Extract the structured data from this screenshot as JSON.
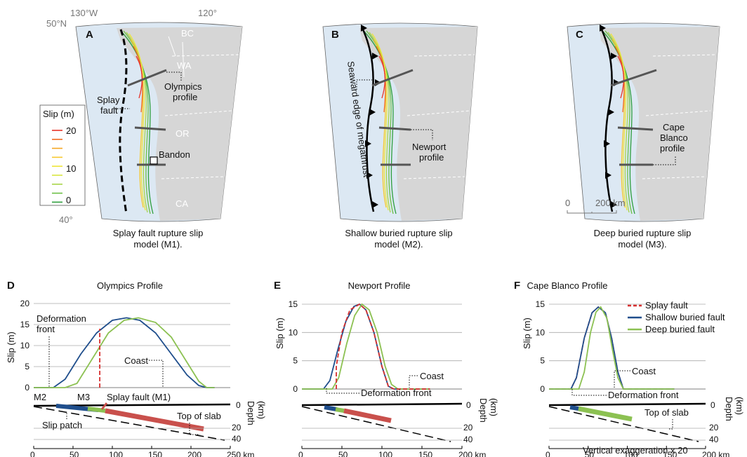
{
  "panels": {
    "A": {
      "letter": "A",
      "caption_l1": "Splay fault rupture slip",
      "caption_l2": "model (M1).",
      "lon_w": "130°W",
      "lon_e": "120°",
      "lat_n": "50°N",
      "lat_s": "40°",
      "regions": {
        "bc": "BC",
        "wa": "WA",
        "or": "OR",
        "ca": "CA"
      },
      "splay_l1": "Splay",
      "splay_l2": "fault",
      "olym_l1": "Olympics",
      "olym_l2": "profile",
      "bandon": "Bandon"
    },
    "B": {
      "letter": "B",
      "caption_l1": "Shallow buried rupture slip",
      "caption_l2": "model (M2).",
      "seaward": "Seaward edge of megathrust",
      "newport_l1": "Newport",
      "newport_l2": "profile"
    },
    "C": {
      "letter": "C",
      "caption_l1": "Deep buried rupture slip",
      "caption_l2": "model (M3).",
      "cape_l1": "Cape",
      "cape_l2": "Blanco",
      "cape_l3": "profile",
      "scale_0": "0",
      "scale_200": "200 km"
    }
  },
  "legend": {
    "title": "Slip (m)",
    "ticks": [
      "20",
      "10",
      "0"
    ],
    "colors": [
      "#e8322a",
      "#f06b22",
      "#f5a623",
      "#f7c82e",
      "#eee53a",
      "#d8e640",
      "#a8d448",
      "#6bbf45",
      "#2e9e3e"
    ]
  },
  "chart_data": [
    {
      "type": "line",
      "title": "Olympics Profile",
      "panel": "D",
      "xlabel": "km",
      "ylabel": "Slip (m)",
      "xlim": [
        0,
        250
      ],
      "ylim": [
        0,
        20
      ],
      "xticks": [
        "0",
        "50",
        "100",
        "150",
        "200",
        "250 km"
      ],
      "yticks": [
        "0",
        "5",
        "10",
        "15",
        "20"
      ],
      "series": [
        {
          "model": "shallow",
          "color": "#1f4e8c",
          "x": [
            0,
            25,
            40,
            60,
            80,
            100,
            118,
            135,
            155,
            175,
            195,
            210,
            220,
            230
          ],
          "y": [
            0,
            0,
            2,
            8,
            13,
            16,
            16.6,
            16,
            13,
            8,
            3,
            0.5,
            0,
            0
          ]
        },
        {
          "model": "deep",
          "color": "#8cc152",
          "x": [
            0,
            25,
            40,
            55,
            75,
            95,
            115,
            133,
            155,
            175,
            195,
            210,
            220,
            230
          ],
          "y": [
            0,
            0,
            0,
            1,
            7,
            13,
            16,
            16.6,
            15.5,
            12,
            6,
            1.5,
            0,
            0
          ]
        },
        {
          "model": "splay",
          "color": "#d62f2f",
          "x": [
            84,
            84
          ],
          "y": [
            0,
            14
          ]
        }
      ],
      "annotations": {
        "deform_l1": "Deformation",
        "deform_l2": "front",
        "coast": "Coast",
        "splay_m1": "Splay fault (M1)",
        "m2": "M2",
        "m3": "M3",
        "slab": "Top of slab",
        "slip_patch": "Slip patch"
      },
      "depth": {
        "label": "Depth",
        "unit": "(km)",
        "ticks": [
          "0",
          "20",
          "40"
        ]
      }
    },
    {
      "type": "line",
      "title": "Newport Profile",
      "panel": "E",
      "xlabel": "km",
      "ylabel": "Slip (m)",
      "xlim": [
        0,
        200
      ],
      "ylim": [
        0,
        15
      ],
      "xticks": [
        "0",
        "50",
        "100",
        "150",
        "200 km"
      ],
      "yticks": [
        "0",
        "5",
        "10",
        "15"
      ],
      "series": [
        {
          "model": "shallow",
          "color": "#1f4e8c",
          "x": [
            0,
            27,
            35,
            45,
            55,
            65,
            72,
            80,
            90,
            100,
            108,
            115,
            160
          ],
          "y": [
            0,
            0,
            1.5,
            7,
            12,
            14.6,
            15,
            14,
            10,
            4,
            0.5,
            0,
            0
          ]
        },
        {
          "model": "deep",
          "color": "#8cc152",
          "x": [
            0,
            38,
            46,
            56,
            66,
            75,
            84,
            94,
            104,
            112,
            120,
            160
          ],
          "y": [
            0,
            0,
            2,
            8,
            13,
            15,
            14,
            10,
            4,
            0.8,
            0,
            0
          ]
        },
        {
          "model": "splay",
          "color": "#d62f2f",
          "x": [
            43,
            43,
            50,
            60,
            72,
            80,
            90,
            100,
            108,
            115,
            160
          ],
          "y": [
            0,
            4,
            10,
            14,
            15,
            14,
            10,
            4,
            0.5,
            0,
            0
          ]
        }
      ],
      "annotations": {
        "coast": "Coast",
        "deform": "Deformation front"
      },
      "depth": {
        "label": "Depth",
        "unit": "(km)",
        "ticks": [
          "0",
          "20",
          "40"
        ]
      }
    },
    {
      "type": "line",
      "title": "Cape Blanco Profile",
      "panel": "F",
      "xlabel": "km",
      "ylabel": "Slip (m)",
      "xlim": [
        0,
        200
      ],
      "ylim": [
        0,
        15
      ],
      "xticks": [
        "0",
        "50",
        "100",
        "150",
        "200 km"
      ],
      "yticks": [
        "0",
        "5",
        "10",
        "15"
      ],
      "series": [
        {
          "name": "Splay fault",
          "model": "splay",
          "color": "#d62f2f",
          "x": [
            0,
            28,
            35,
            45,
            55,
            63,
            72,
            80,
            88,
            95,
            160
          ],
          "y": [
            0,
            0,
            2,
            9,
            13.5,
            14.5,
            13.5,
            9,
            3,
            0,
            0
          ]
        },
        {
          "name": "Shallow buried fault",
          "model": "shallow",
          "color": "#1f4e8c",
          "x": [
            0,
            28,
            35,
            45,
            55,
            63,
            72,
            80,
            88,
            95,
            160
          ],
          "y": [
            0,
            0,
            2,
            9,
            13.5,
            14.5,
            13.5,
            9,
            3,
            0,
            0
          ]
        },
        {
          "name": "Deep buried fault",
          "model": "deep",
          "color": "#8cc152",
          "x": [
            0,
            38,
            45,
            53,
            60,
            66,
            74,
            81,
            88,
            95,
            160
          ],
          "y": [
            0,
            0,
            3,
            10,
            13.6,
            14.5,
            12.5,
            7,
            2,
            0,
            0
          ]
        }
      ],
      "annotations": {
        "coast": "Coast",
        "deform": "Deformation front",
        "slab": "Top of slab",
        "exag": "Vertical exaggeration x 20"
      },
      "depth": {
        "label": "Depth",
        "unit": "(km)",
        "ticks": [
          "0",
          "20",
          "40"
        ]
      }
    }
  ]
}
